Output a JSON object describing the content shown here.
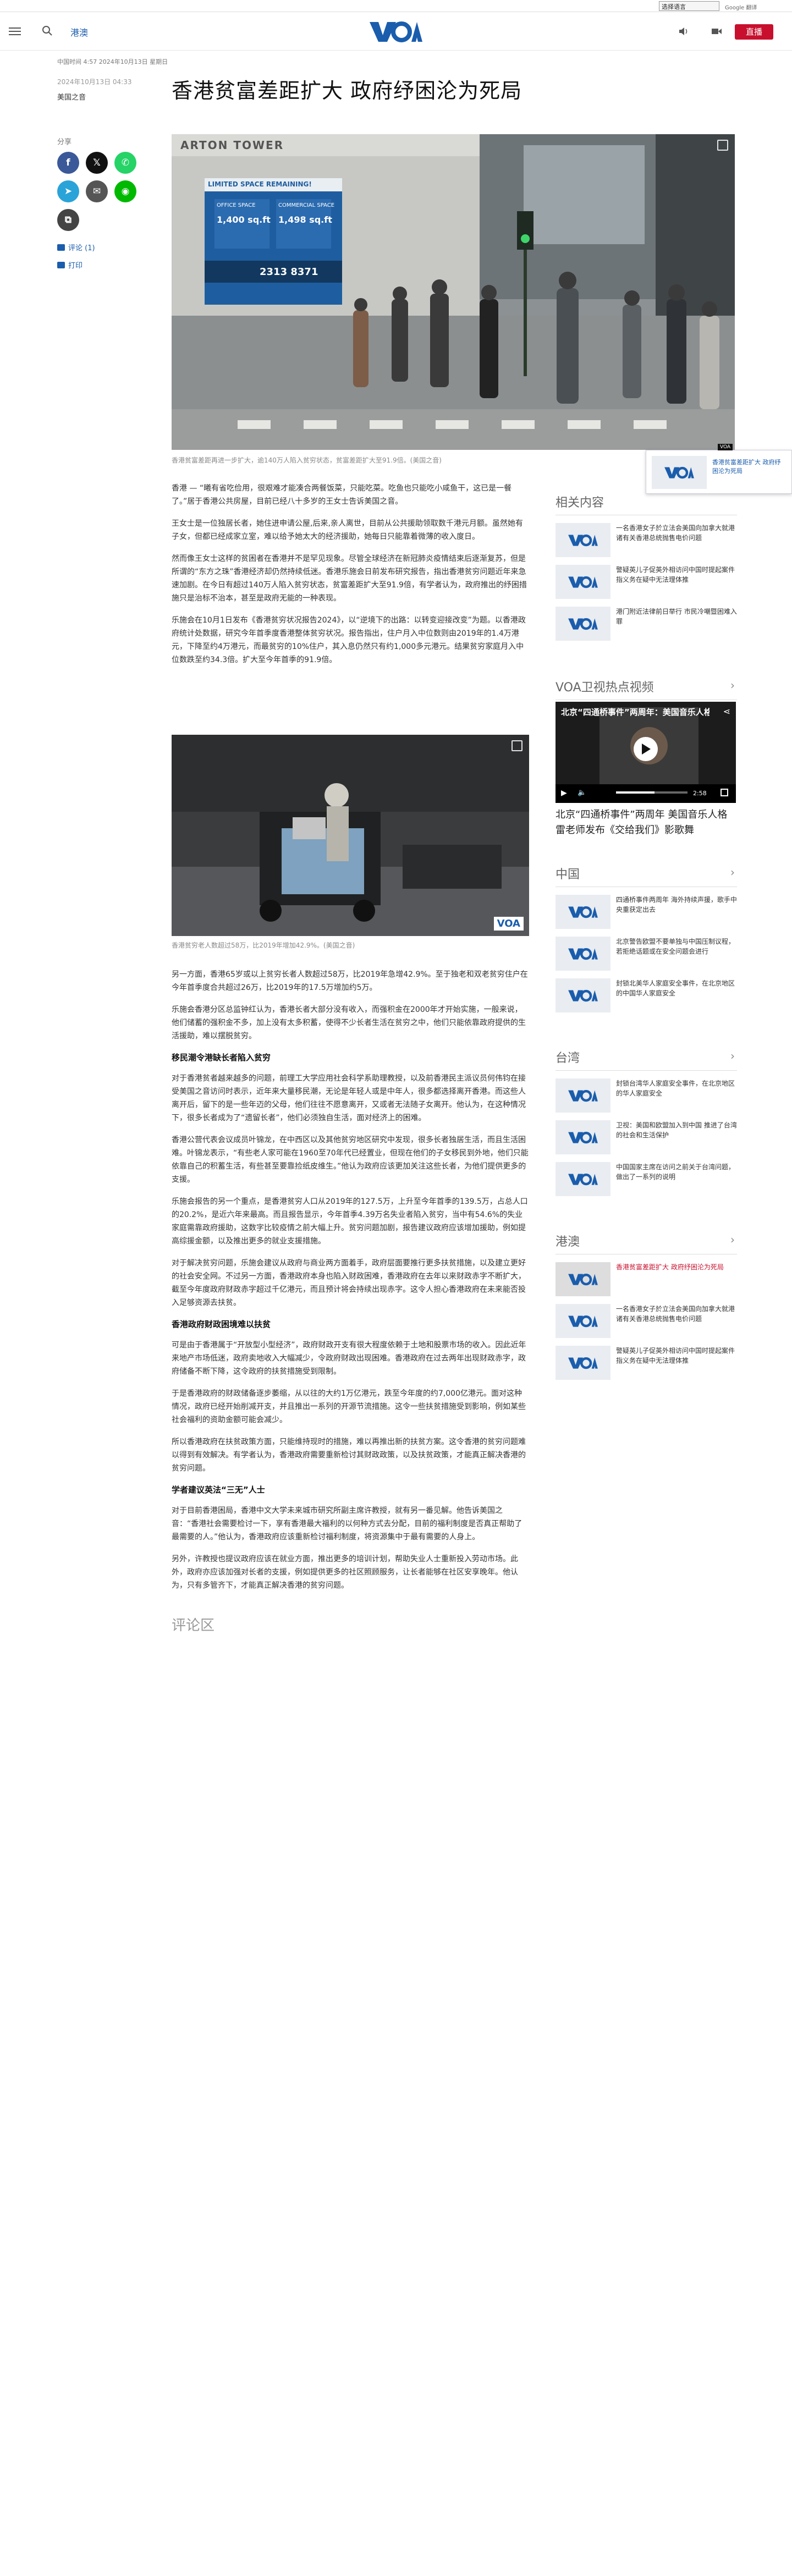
{
  "topbar": {
    "language_select": "选择语言",
    "google_label": "Google 翻译"
  },
  "header": {
    "section": "港澳",
    "live_label": "直播",
    "logo_text": "VOA"
  },
  "article": {
    "meta_line": "中国时间 4:57 2024年10月13日 星期日",
    "date": "2024年10月13日 04:33",
    "author": "美国之音",
    "title": "香港贫富差距扩大 政府纾困沦为死局",
    "share_label": "分享",
    "comments_link": "评论 (1)",
    "print_link": "打印",
    "photo1_caption": "香港贫富差距再进一步扩大，逾140万人陷入贫穷状态，贫富差距扩大至91.9倍。(美国之音)",
    "photo1_text": {
      "tower": "ARTON TOWER",
      "banner": "LIMITED SPACE REMAINING!",
      "office": "OFFICE SPACE",
      "commercial": "COMMERCIAL SPACE",
      "office_area": "1,400 sq.ft",
      "commercial_area": "1,498 sq.ft",
      "phone": "2313 8371"
    },
    "photo2_caption": "香港贫穷老人数超过58万，比2019年增加42.9%。(美国之音)",
    "photo2_badge": "VOA",
    "paragraphs_a": [
      "香港 — “曦有省吃俭用，很艰难才能凑合两餐饭菜，只能吃菜。吃鱼也只能吃小咸鱼干，这已是一餐了。”居于香港公共房屋，目前已经八十多岁的王女士告诉美国之音。",
      "王女士是一位独居长者，她住进申请公屋,后来,亲人离世，目前从公共援助领取数千港元月额。虽然她有子女，但都已经成家立室，难以给予她太大的经济援助，她每日只能靠着微薄的收入度日。",
      "然而像王女士这样的贫困者在香港并不是罕见现象。尽管全球经济在新冠肺炎疫情结束后逐渐复苏，但是所谓的“东方之珠”香港经济却仍然持续低迷。香港乐施会日前发布研究报告，指出香港贫穷问题近年来急速加剧。在今日有超过140万人陷入贫穷状态，贫富差距扩大至91.9倍，有学者认为，政府推出的纾困措施只是治标不治本，甚至是政府无能的一种表现。",
      "乐施会在10月1日发布《香港贫穷状况报告2024》，以“逆境下的出路：以转变迎接改变”为题。以香港政府统计处数据，研究今年首季度香港整体贫穷状况。报告指出，住户月入中位数则由2019年的1.4万港元，下降至约4万港元，而最贫穷的10%住户，其入息仍然只有约1,000多元港元。结果贫穷家庭月入中位数跌至约34.3倍。扩大至今年首季的91.9倍。"
    ],
    "paragraphs_b": [
      "另一方面，香港65岁或以上贫穷长者人数超过58万，比2019年急增42.9%。至于独老和双老贫穷住户在今年首季度合共超过26万，比2019年的17.5万增加约5万。",
      "乐施会香港分区总监钟红认为，香港长者大部分没有收入，而强积金在2000年才开始实施，一般来说，他们储蓄的强积金不多，加上没有太多积蓄，使得不少长者生活在贫穷之中，他们只能依靠政府提供的生活援助，难以摆脱贫穷。"
    ],
    "subhead1": "移民潮令港缺长者陷入贫穷",
    "paragraphs_c": [
      "对于香港贫者越来越多的问题，前理工大学应用社会科学系助理教授，以及前香港民主派议员何伟钧在接受美国之音访问时表示，近年来大量移民潮，无论是年轻人或是中年人，很多都选择离开香港。而这些人离开后，留下的是一些年迈的父母，他们往往不愿意离开，又或者无法随子女离开。他认为，在这种情况下，很多长者成为了“遗留长者”，他们必须独自生活，面对经济上的困难。",
      "香港公营代表会议成员叶锦龙，在中西区以及其他贫穷地区研究中发现，很多长者独居生活，而且生活困难。叶锦龙表示，“有些老人家可能在1960至70年代已经置业，但现在他们的子女移民到外地，他们只能依靠自己的积蓄生活，有些甚至要靠捡纸皮维生。”他认为政府应该更加关注这些长者，为他们提供更多的支援。",
      "乐施会报告的另一个重点，是香港贫穷人口从2019年的127.5万，上升至今年首季的139.5万，占总人口的20.2%，是近六年来最高。而且报告显示，今年首季4.39万名失业者陷入贫穷，当中有54.6%的失业家庭需靠政府援助，这数字比较疫情之前大幅上升。贫穷问题加剧，报告建议政府应该增加援助，例如提高综援金额，以及推出更多的就业支援措施。",
      "对于解决贫穷问题，乐施会建议从政府与商业两方面着手，政府层面要推行更多扶贫措施，以及建立更好的社会安全网。不过另一方面，香港政府本身也陷入财政困难，香港政府在去年以来财政赤字不断扩大，截至今年度政府财政赤字超过千亿港元，而且预计将会持续出现赤字。这令人担心香港政府在未来能否投入足够资源去扶贫。"
    ],
    "subhead2": "香港政府财政困境难以扶贫",
    "paragraphs_d": [
      "可是由于香港属于“开放型小型经济”，政府财政开支有很大程度依赖于土地和股票市场的收入。因此近年来地产市场低迷，政府卖地收入大幅减少，令政府财政出现困难。香港政府在过去两年出现财政赤字，政府储备不断下降，这令政府的扶贫措施受到限制。",
      "于是香港政府的财政储备逐步萎缩，从以往的大约1万亿港元，跌至今年度的约7,000亿港元。面对这种情况，政府已经开始削减开支，并且推出一系列的开源节流措施。这令一些扶贫措施受到影响，例如某些社会福利的资助金额可能会减少。",
      "所以香港政府在扶贫政策方面，只能维持现时的措施，难以再推出新的扶贫方案。这令香港的贫穷问题难以得到有效解决。有学者认为，香港政府需要重新检讨其财政政策，以及扶贫政策，才能真正解决香港的贫穷问题。"
    ],
    "subhead3": "学者建议英法“三无”人士",
    "paragraphs_e": [
      "对于目前香港困局，香港中文大学未来城市研究所副主席许教授，就有另一番见解。他告诉美国之音：“香港社会需要检讨一下，享有香港最大福利的以何种方式去分配，目前的福利制度是否真正帮助了最需要的人。”他认为，香港政府应该重新检讨福利制度，将资源集中于最有需要的人身上。",
      "另外，许教授也提议政府应该在就业方面，推出更多的培训计划，帮助失业人士重新投入劳动市场。此外，政府亦应该加强对长者的支援，例如提供更多的社区照顾服务，让长者能够在社区安享晚年。他认为，只有多管齐下，才能真正解决香港的贫穷问题。"
    ],
    "comments_heading": "评论区"
  },
  "popup": {
    "text": "香港贫富差距扩大 政府纾困沦为死局",
    "badge": "VOA"
  },
  "sidebar": {
    "related": {
      "title": "相关内容",
      "items": [
        {
          "text": "一名香港女子於立法会美国向加拿大就港诸有关香港总统抛售电价问题"
        },
        {
          "text": "警疑英儿子促英外相访问中国时提起案件 指义务在疑中无法理体推"
        },
        {
          "text": "港门附近法律前日举行 市民冷嘲暨困难入罪"
        }
      ]
    },
    "video": {
      "title": "VOA卫视热点视频",
      "overlay_title": "北京“四通桥事件”两周年：美国音乐人格雷老...",
      "caption": "北京“四通桥事件”两周年 美国音乐人格雷老师发布《交给我们》影歌舞",
      "time": "2:58"
    },
    "china": {
      "title": "中国",
      "items": [
        {
          "text": "四通桥事件两周年 海外持续声援，歌手中央重获定出去"
        },
        {
          "text": "北京警告欧盟不要单独与中国压制议程，若拒绝话题或在安全问题会进行"
        },
        {
          "text": "封锁北美华人家庭安全事件，在北京地区的中国华人家庭安全"
        }
      ]
    },
    "taiwan": {
      "title": "台湾",
      "items": [
        {
          "text": "封锁台湾华人家庭安全事件，在北京地区的华人家庭安全"
        },
        {
          "text": "卫视：美国和欧盟加入到中国 推进了台湾的社会和生活保护"
        },
        {
          "text": "中国国家主席在访问之前关于台湾问题，做出了一系列的说明"
        }
      ]
    },
    "hongkong": {
      "title": "港澳",
      "items": [
        {
          "text": "香港贫富差距扩大 政府纾困沦为死局"
        },
        {
          "text": "一名香港女子於立法会美国向加拿大就港诸有关香港总统抛售电价问题"
        },
        {
          "text": "警疑英儿子促英外相访问中国时提起案件 指义务在疑中无法理体推"
        }
      ]
    }
  },
  "colors": {
    "brand_blue": "#1a5dad",
    "live_red": "#c8102e",
    "facebook": "#3b5998",
    "x": "#111111",
    "whatsapp": "#25d366",
    "telegram": "#2aa3d8",
    "email": "#555555",
    "line": "#00b900",
    "copy": "#444444"
  }
}
